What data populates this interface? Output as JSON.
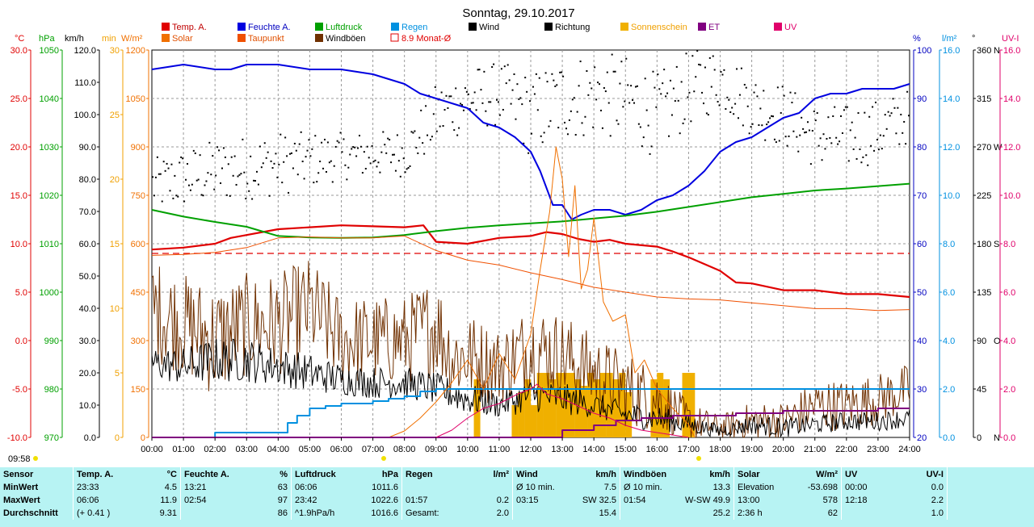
{
  "title": "Sonntag, 29.10.2017",
  "time_stamp": "09:58",
  "legend": [
    {
      "label": "Temp. A.",
      "color": "#e00000",
      "kind": "fill"
    },
    {
      "label": "Feuchte A.",
      "color": "#0000e0",
      "kind": "fill"
    },
    {
      "label": "Luftdruck",
      "color": "#00a000",
      "kind": "fill"
    },
    {
      "label": "Regen",
      "color": "#0090e0",
      "kind": "fill"
    },
    {
      "label": "Wind",
      "color": "#000000",
      "kind": "fill"
    },
    {
      "label": "Richtung",
      "color": "#000000",
      "kind": "fill"
    },
    {
      "label": "Sonnenschein",
      "color": "#f0b000",
      "kind": "fill"
    },
    {
      "label": "ET",
      "color": "#800080",
      "kind": "fill"
    },
    {
      "label": "UV",
      "color": "#e0006a",
      "kind": "fill"
    },
    {
      "label": "Solar",
      "color": "#f07000",
      "kind": "fill"
    },
    {
      "label": "Taupunkt",
      "color": "#f05000",
      "kind": "fill"
    },
    {
      "label": "Windböen",
      "color": "#703000",
      "kind": "fill"
    },
    {
      "label": "8.9 Monat-Ø",
      "color": "#e00000",
      "kind": "box"
    }
  ],
  "left_axes": [
    {
      "unit": "°C",
      "color": "#e00000",
      "ticks": [
        "30.0",
        "25.0",
        "20.0",
        "15.0",
        "10.0",
        "5.0",
        "0.0",
        "-5.0",
        "-10.0"
      ]
    },
    {
      "unit": "hPa",
      "color": "#00a000",
      "ticks": [
        "1050",
        "1040",
        "1030",
        "1020",
        "1010",
        "1000",
        "990",
        "980",
        "970"
      ]
    },
    {
      "unit": "km/h",
      "color": "#000000",
      "ticks": [
        "120.0",
        "110.0",
        "100.0",
        "90.0",
        "80.0",
        "70.0",
        "60.0",
        "50.0",
        "40.0",
        "30.0",
        "20.0",
        "10.0",
        "0.0"
      ]
    },
    {
      "unit": "min",
      "color": "#f0a000",
      "ticks": [
        "30",
        "25",
        "20",
        "15",
        "10",
        "5",
        "0"
      ]
    },
    {
      "unit": "W/m²",
      "color": "#f07000",
      "ticks": [
        "1200",
        "1050",
        "900",
        "750",
        "600",
        "450",
        "300",
        "150",
        "0"
      ]
    }
  ],
  "right_axes": [
    {
      "unit": "%",
      "color": "#0000c0",
      "ticks": [
        "100",
        "90",
        "80",
        "70",
        "60",
        "50",
        "40",
        "30",
        "20"
      ]
    },
    {
      "unit": "l/m²",
      "color": "#0090e0",
      "ticks": [
        "16.0",
        "14.0",
        "12.0",
        "10.0",
        "8.0",
        "6.0",
        "4.0",
        "2.0",
        "0.0"
      ]
    },
    {
      "unit": "°",
      "color": "#000000",
      "ticks": [
        "360",
        "315",
        "270",
        "225",
        "180",
        "135",
        "90",
        "45",
        "0"
      ],
      "dirs": [
        "N",
        "",
        "W",
        "",
        "S",
        "",
        "O",
        "",
        "N"
      ]
    },
    {
      "unit": "UV-I",
      "color": "#e0006a",
      "ticks": [
        "16.0",
        "14.0",
        "12.0",
        "10.0",
        "8.0",
        "6.0",
        "4.0",
        "2.0",
        "0.0"
      ]
    }
  ],
  "time_labels": [
    "00:00",
    "01:00",
    "02:00",
    "03:00",
    "04:00",
    "05:00",
    "06:00",
    "07:00",
    "08:00",
    "09:00",
    "10:00",
    "11:00",
    "12:00",
    "13:00",
    "14:00",
    "15:00",
    "16:00",
    "17:00",
    "18:00",
    "19:00",
    "20:00",
    "21:00",
    "22:00",
    "23:00",
    "24:00"
  ],
  "chart_data": {
    "type": "line",
    "x_unit": "hour of day",
    "xlim": [
      0,
      24
    ],
    "monthly_mean_temp": 8.9,
    "series": [
      {
        "name": "Temp. A.",
        "axis": "°C",
        "ylim": [
          -10,
          30
        ],
        "color": "#e00000",
        "width": 2.2,
        "x": [
          0,
          1,
          2,
          2.5,
          3,
          4,
          5,
          6,
          7,
          8,
          8.6,
          9,
          10,
          11,
          12,
          12.5,
          13,
          13.5,
          14,
          14.5,
          15,
          16,
          16.5,
          17,
          18,
          18.5,
          19,
          20,
          21,
          22,
          23,
          24
        ],
        "y": [
          9.4,
          9.6,
          10.0,
          10.6,
          10.9,
          11.5,
          11.7,
          11.9,
          11.8,
          11.7,
          11.9,
          10.2,
          10.0,
          10.6,
          10.8,
          11.2,
          11.0,
          10.5,
          10.2,
          10.4,
          10.0,
          9.7,
          9.2,
          8.6,
          7.2,
          6.0,
          5.9,
          5.2,
          5.2,
          4.8,
          4.8,
          4.5
        ]
      },
      {
        "name": "Feuchte A.",
        "axis": "%",
        "ylim": [
          20,
          100
        ],
        "color": "#0000e0",
        "width": 2,
        "x": [
          0,
          1,
          2,
          2.5,
          3,
          4,
          5,
          6,
          7,
          8,
          8.5,
          9,
          9.5,
          10,
          10.5,
          11,
          11.5,
          12,
          12.3,
          12.7,
          13,
          13.3,
          13.6,
          14,
          14.5,
          15,
          15.5,
          16,
          16.5,
          17,
          17.5,
          18,
          18.5,
          19,
          19.5,
          20,
          20.5,
          21,
          21.5,
          22,
          22.5,
          23,
          23.5,
          24
        ],
        "y": [
          96,
          97,
          96,
          96,
          97,
          97,
          96,
          96,
          95,
          93,
          91,
          90,
          89,
          88,
          85,
          84,
          82,
          79,
          75,
          68,
          68,
          65,
          66,
          67,
          67,
          66,
          67,
          69,
          70,
          72,
          75,
          79,
          81,
          82,
          84,
          86,
          87,
          90,
          91,
          91,
          92,
          92,
          92,
          93
        ]
      },
      {
        "name": "Luftdruck",
        "axis": "hPa",
        "ylim": [
          970,
          1050
        ],
        "color": "#00a000",
        "width": 2,
        "x": [
          0,
          1,
          2,
          3,
          4,
          5,
          6,
          7,
          8,
          9,
          10,
          11,
          12,
          13,
          14,
          15,
          16,
          17,
          18,
          19,
          20,
          21,
          22,
          23,
          24
        ],
        "y": [
          1017.0,
          1015.6,
          1014.5,
          1013.5,
          1011.6,
          1011.3,
          1011.2,
          1011.3,
          1011.8,
          1012.6,
          1013.3,
          1013.8,
          1014.2,
          1014.6,
          1015.2,
          1015.8,
          1016.6,
          1017.6,
          1018.6,
          1019.6,
          1020.3,
          1021.0,
          1021.4,
          1021.9,
          1022.4
        ]
      },
      {
        "name": "Regen",
        "axis": "l/m²",
        "ylim": [
          0,
          16
        ],
        "color": "#0090e0",
        "width": 2,
        "step": true,
        "x": [
          0,
          1.9,
          2.0,
          4.0,
          4.3,
          4.6,
          5.0,
          5.5,
          6.0,
          6.5,
          7.0,
          7.5,
          8.0,
          8.5,
          9.0,
          10.0,
          24
        ],
        "y": [
          0,
          0,
          0.2,
          0.2,
          0.6,
          0.9,
          1.2,
          1.3,
          1.4,
          1.4,
          1.5,
          1.6,
          1.7,
          1.9,
          2.0,
          2.0,
          2.0
        ]
      },
      {
        "name": "Solar",
        "axis": "W/m²",
        "ylim": [
          0,
          1200
        ],
        "color": "#f07000",
        "width": 1,
        "x": [
          7.5,
          8,
          8.5,
          9,
          9.5,
          10,
          10.5,
          11,
          11.5,
          12,
          12.3,
          12.6,
          12.8,
          13,
          13.2,
          13.4,
          13.6,
          13.8,
          14,
          14.3,
          14.6,
          15,
          15.3,
          15.6,
          16,
          16.5,
          17,
          17.2
        ],
        "y": [
          0,
          20,
          60,
          110,
          170,
          240,
          150,
          260,
          180,
          320,
          520,
          700,
          900,
          800,
          560,
          780,
          460,
          520,
          680,
          420,
          360,
          380,
          200,
          240,
          150,
          90,
          40,
          0
        ]
      },
      {
        "name": "Taupunkt",
        "axis": "°C",
        "ylim": [
          -10,
          30
        ],
        "color": "#f05000",
        "width": 1,
        "x": [
          0,
          1,
          2,
          3,
          4,
          5,
          6,
          7,
          8,
          9,
          10,
          11,
          12,
          13,
          14,
          15,
          16,
          17,
          18,
          19,
          20,
          21,
          22,
          23,
          24
        ],
        "y": [
          8.8,
          8.9,
          9.1,
          9.6,
          10.6,
          10.7,
          10.6,
          10.6,
          10.8,
          9.3,
          8.3,
          7.8,
          7.0,
          6.3,
          5.5,
          5.0,
          4.5,
          4.3,
          4.2,
          3.9,
          3.6,
          3.3,
          3.3,
          3.1,
          3.2
        ]
      },
      {
        "name": "Sonnenschein",
        "axis": "min",
        "ylim": [
          0,
          30
        ],
        "color": "#f0b000",
        "kind": "bars",
        "x": [
          10.3,
          11.5,
          11.7,
          11.9,
          12.1,
          12.3,
          12.5,
          12.7,
          12.9,
          13.1,
          13.3,
          13.5,
          13.7,
          13.9,
          14.1,
          14.3,
          14.5,
          14.7,
          14.9,
          15.1,
          15.9,
          16.1,
          16.3,
          16.9,
          17.1
        ],
        "y": [
          4.5,
          2.5,
          3.5,
          4.5,
          2.5,
          5,
          5,
          4.5,
          5,
          5,
          5,
          4.5,
          4,
          5,
          4.5,
          5,
          5,
          4.5,
          5,
          3.5,
          4.5,
          5,
          4.5,
          5,
          5
        ]
      },
      {
        "name": "ET",
        "axis": "l/m²",
        "ylim": [
          0,
          16
        ],
        "color": "#800080",
        "width": 2,
        "step": true,
        "x": [
          0,
          12.5,
          13,
          14,
          14.7,
          15.5,
          16.5,
          18.5,
          20,
          22,
          23,
          24
        ],
        "y": [
          0,
          0,
          0.3,
          0.5,
          0.7,
          0.8,
          0.9,
          1.0,
          1.1,
          1.1,
          1.2,
          1.2
        ]
      },
      {
        "name": "UV",
        "axis": "UV-I",
        "ylim": [
          0,
          16
        ],
        "color": "#e0006a",
        "width": 1,
        "x": [
          9,
          9.5,
          10,
          10.5,
          11,
          11.3,
          11.6,
          12,
          12.2,
          12.5,
          13,
          13.5,
          14,
          14.5,
          15,
          15.5,
          16,
          16.5,
          17
        ],
        "y": [
          0,
          0.3,
          0.8,
          1.2,
          1.4,
          1.6,
          1.8,
          2.0,
          2.2,
          1.8,
          1.6,
          1.3,
          1.0,
          0.8,
          0.5,
          0.3,
          0.2,
          0.1,
          0
        ]
      }
    ],
    "noisy_series": [
      {
        "name": "Windböen",
        "axis": "km/h",
        "ylim": [
          0,
          120
        ],
        "color": "#703000",
        "width": 1,
        "x": [
          0,
          1,
          2,
          3,
          4,
          5,
          6,
          7,
          8,
          9,
          9.5,
          10,
          11,
          12,
          13,
          14,
          15,
          16,
          17,
          18,
          19,
          20,
          21,
          22,
          23,
          24
        ],
        "y": [
          40,
          35,
          30,
          35,
          35,
          40,
          30,
          30,
          30,
          35,
          25,
          25,
          22,
          28,
          25,
          20,
          15,
          12,
          5,
          3,
          5,
          5,
          10,
          10,
          12,
          15
        ],
        "amp": [
          16,
          16,
          18,
          16,
          16,
          16,
          14,
          14,
          14,
          16,
          14,
          14,
          12,
          14,
          14,
          12,
          12,
          10,
          6,
          4,
          6,
          6,
          8,
          8,
          8,
          8
        ]
      },
      {
        "name": "Wind",
        "axis": "km/h",
        "ylim": [
          0,
          120
        ],
        "color": "#000000",
        "width": 1,
        "x": [
          0,
          1,
          2,
          3,
          4,
          5,
          6,
          7,
          8,
          9,
          10,
          11,
          12,
          13,
          14,
          15,
          16,
          17,
          18,
          19,
          20,
          21,
          22,
          23,
          24
        ],
        "y": [
          23,
          22,
          24,
          24,
          22,
          20,
          18,
          17,
          17,
          15,
          12,
          10,
          13,
          12,
          10,
          7,
          6,
          4,
          2,
          4,
          3,
          4,
          5,
          5,
          6
        ],
        "amp": [
          5,
          6,
          7,
          7,
          6,
          6,
          5,
          5,
          5,
          5,
          5,
          4,
          5,
          5,
          4,
          4,
          4,
          3,
          2,
          3,
          3,
          3,
          3,
          3,
          3
        ]
      }
    ],
    "direction": {
      "name": "Richtung",
      "axis": "°",
      "ylim": [
        0,
        360
      ],
      "x": [
        0,
        2,
        4,
        6,
        8,
        9,
        10,
        11,
        12,
        13,
        14,
        15,
        16,
        17,
        18,
        19,
        20,
        21,
        22,
        23,
        24
      ],
      "y": [
        235,
        248,
        255,
        262,
        265,
        300,
        315,
        320,
        300,
        315,
        320,
        315,
        300,
        325,
        335,
        310,
        300,
        280,
        280,
        285,
        300
      ],
      "spread": [
        25,
        30,
        30,
        22,
        22,
        30,
        30,
        30,
        40,
        40,
        40,
        40,
        40,
        35,
        30,
        30,
        30,
        30,
        30,
        30,
        25
      ]
    },
    "threshold_temp": 9.0
  },
  "stats": {
    "headers": [
      "Sensor",
      "Temp. A.",
      "°C",
      "Feuchte A.",
      "%",
      "Luftdruck",
      "hPa",
      "Regen",
      "l/m²",
      "Wind",
      "km/h",
      "Windböen",
      "km/h",
      "Solar",
      "W/m²",
      "UV",
      "UV-I"
    ],
    "rows": [
      {
        "label": "MinWert",
        "c": [
          "23:33",
          "4.5",
          "13:21",
          "63",
          "06:06",
          "1011.6",
          "",
          "",
          "Ø 10 min.",
          "7.5",
          "Ø 10 min.",
          "13.3",
          "Elevation",
          "-53.698",
          "00:00",
          "0.0"
        ]
      },
      {
        "label": "MaxWert",
        "c": [
          "06:06",
          "11.9",
          "02:54",
          "97",
          "23:42",
          "1022.6",
          "01:57",
          "0.2",
          "03:15",
          "SW 32.5",
          "01:54",
          "W-SW 49.9",
          "13:00",
          "578",
          "12:18",
          "2.2"
        ]
      },
      {
        "label": "Durchschnitt",
        "c": [
          "(+ 0.41 )",
          "9.31",
          "",
          "86",
          "^1.9hPa/h",
          "1016.6",
          "Gesamt:",
          "2.0",
          "",
          "15.4",
          "",
          "25.2",
          "2:36 h",
          "62",
          "",
          "1.0"
        ]
      }
    ]
  }
}
